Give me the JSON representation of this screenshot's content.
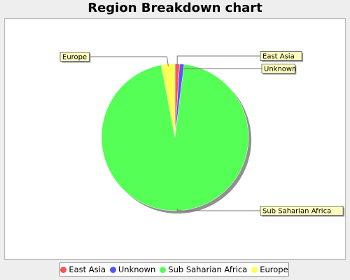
{
  "chart_data": {
    "type": "pie",
    "title": "Region Breakdown chart",
    "slices": [
      {
        "name": "East Asia",
        "value": 1.0,
        "color": "#ff5555"
      },
      {
        "name": "Unknown",
        "value": 1.0,
        "color": "#5555ff"
      },
      {
        "name": "Sub Saharian Africa",
        "value": 95.0,
        "color": "#55ff55"
      },
      {
        "name": "Europe",
        "value": 3.0,
        "color": "#ffff55"
      }
    ],
    "legend_position": "bottom",
    "legend": [
      "East Asia",
      "Unknown",
      "Sub Saharian Africa",
      "Europe"
    ]
  }
}
